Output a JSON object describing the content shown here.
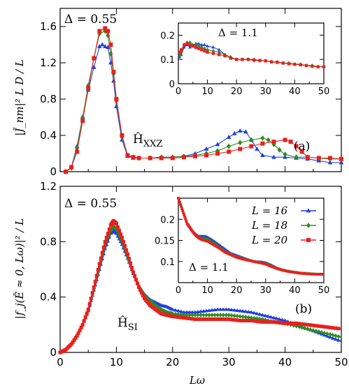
{
  "chart_data": [
    {
      "type": "line",
      "panel_tag": "(a)",
      "delta_label": "Δ = 0.55",
      "model_label_main": "Ĥ",
      "model_label_sub": "XXZ",
      "ylabel": "|J̄_nm|² L D / L",
      "xlim": [
        0,
        50
      ],
      "ylim": [
        0,
        1.8
      ],
      "xticks": [
        0,
        10,
        20,
        30,
        40,
        50
      ],
      "yticks": [
        0,
        0.4,
        0.8,
        1.2,
        1.6
      ],
      "ytick_labels": [
        "0",
        "0.4",
        "0.8",
        "1.2",
        "1.6"
      ],
      "series": [
        {
          "name": "L = 16",
          "color": "#1f3fe0",
          "marker": "triangle",
          "x": [
            1,
            2,
            3,
            4,
            5,
            6,
            7,
            7.5,
            8,
            8.5,
            9,
            9.5,
            10,
            11,
            12,
            13,
            14,
            16,
            18,
            20,
            22,
            24,
            26,
            28,
            30,
            31,
            32,
            33,
            34,
            35,
            36,
            38,
            40,
            42,
            44,
            46,
            48,
            50
          ],
          "y": [
            0,
            0.05,
            0.28,
            0.6,
            0.9,
            1.15,
            1.38,
            1.4,
            1.38,
            1.37,
            1.2,
            1.0,
            0.72,
            0.35,
            0.17,
            0.15,
            0.15,
            0.15,
            0.16,
            0.16,
            0.17,
            0.2,
            0.25,
            0.3,
            0.38,
            0.42,
            0.45,
            0.44,
            0.35,
            0.25,
            0.18,
            0.16,
            0.16,
            0.15,
            0.14,
            0.12,
            0.1,
            0.1
          ]
        },
        {
          "name": "L = 18",
          "color": "#2e8b22",
          "marker": "diamond",
          "x": [
            1,
            2,
            3,
            4,
            5,
            6,
            7,
            8,
            8.5,
            9,
            9.5,
            10,
            11,
            12,
            13,
            14,
            16,
            18,
            20,
            22,
            24,
            26,
            28,
            30,
            32,
            34,
            36,
            37,
            38,
            39,
            40,
            42,
            44,
            46,
            48,
            50
          ],
          "y": [
            0,
            0.04,
            0.26,
            0.6,
            0.95,
            1.25,
            1.52,
            1.55,
            1.5,
            1.3,
            1.08,
            0.78,
            0.38,
            0.18,
            0.16,
            0.15,
            0.15,
            0.16,
            0.16,
            0.17,
            0.18,
            0.2,
            0.23,
            0.28,
            0.32,
            0.35,
            0.37,
            0.35,
            0.3,
            0.24,
            0.19,
            0.16,
            0.16,
            0.15,
            0.14,
            0.14
          ]
        },
        {
          "name": "L = 20",
          "color": "#e8201c",
          "marker": "square",
          "x": [
            1,
            2,
            3,
            4,
            5,
            6,
            7,
            8,
            8.5,
            9,
            9.5,
            10,
            11,
            12,
            13,
            14,
            16,
            18,
            20,
            22,
            24,
            26,
            28,
            30,
            32,
            34,
            36,
            38,
            40,
            41,
            42,
            43,
            44,
            46,
            48,
            50
          ],
          "y": [
            0,
            0.05,
            0.22,
            0.56,
            0.92,
            1.25,
            1.55,
            1.58,
            1.55,
            1.4,
            1.1,
            0.8,
            0.4,
            0.18,
            0.16,
            0.15,
            0.15,
            0.15,
            0.15,
            0.16,
            0.17,
            0.18,
            0.2,
            0.22,
            0.25,
            0.28,
            0.31,
            0.33,
            0.35,
            0.33,
            0.28,
            0.22,
            0.16,
            0.15,
            0.15,
            0.14
          ]
        }
      ],
      "inset": {
        "delta_label": "Δ = 1.1",
        "xlim": [
          0,
          50
        ],
        "ylim": [
          0,
          0.25
        ],
        "xticks": [
          0,
          10,
          20,
          30,
          40,
          50
        ],
        "yticks": [
          0,
          0.1,
          0.2
        ],
        "ytick_labels": [
          "0",
          "0.1",
          "0.2"
        ],
        "series": [
          {
            "name": "L = 16",
            "color": "#1f3fe0",
            "marker": "triangle",
            "x": [
              0.5,
              1,
              2,
              3,
              4,
              5,
              6,
              7,
              8,
              9,
              10,
              12,
              14,
              16,
              18,
              20,
              22,
              24,
              26,
              28,
              30,
              32,
              34,
              36,
              38,
              40,
              42,
              44,
              46,
              48,
              50
            ],
            "y": [
              0.11,
              0.12,
              0.15,
              0.16,
              0.15,
              0.16,
              0.165,
              0.165,
              0.16,
              0.16,
              0.155,
              0.15,
              0.14,
              0.12,
              0.11,
              0.1,
              0.1,
              0.1,
              0.1,
              0.095,
              0.095,
              0.09,
              0.09,
              0.085,
              0.085,
              0.08,
              0.08,
              0.075,
              0.075,
              0.07,
              0.07
            ]
          },
          {
            "name": "L = 18",
            "color": "#2e8b22",
            "marker": "diamond",
            "x": [
              0.5,
              1,
              2,
              3,
              4,
              5,
              6,
              7,
              8,
              9,
              10,
              12,
              14,
              16,
              18,
              20,
              22,
              24,
              26,
              28,
              30,
              32,
              34,
              36,
              38,
              40,
              42,
              44,
              46,
              48,
              50
            ],
            "y": [
              0.12,
              0.13,
              0.16,
              0.17,
              0.17,
              0.16,
              0.16,
              0.155,
              0.15,
              0.145,
              0.14,
              0.135,
              0.13,
              0.12,
              0.11,
              0.1,
              0.1,
              0.1,
              0.095,
              0.095,
              0.095,
              0.09,
              0.09,
              0.085,
              0.085,
              0.08,
              0.08,
              0.075,
              0.075,
              0.07,
              0.07
            ]
          },
          {
            "name": "L = 20",
            "color": "#e8201c",
            "marker": "square",
            "x": [
              0.5,
              1,
              2,
              3,
              4,
              5,
              6,
              7,
              8,
              9,
              10,
              12,
              14,
              16,
              18,
              20,
              22,
              24,
              26,
              28,
              30,
              32,
              34,
              36,
              38,
              40,
              42,
              44,
              46,
              48,
              50
            ],
            "y": [
              0.13,
              0.14,
              0.16,
              0.165,
              0.16,
              0.155,
              0.15,
              0.145,
              0.14,
              0.135,
              0.13,
              0.125,
              0.12,
              0.115,
              0.105,
              0.1,
              0.1,
              0.1,
              0.098,
              0.096,
              0.094,
              0.09,
              0.088,
              0.085,
              0.082,
              0.08,
              0.078,
              0.075,
              0.072,
              0.07,
              0.07
            ]
          }
        ]
      }
    },
    {
      "type": "line",
      "panel_tag": "(b)",
      "delta_label": "Δ = 0.55",
      "model_label_main": "Ĥ",
      "model_label_sub": "SI",
      "xlabel": "Lω",
      "ylabel": "|f_j(Ē ≈ 0, Lω)|² / L",
      "xlim": [
        0,
        50
      ],
      "ylim": [
        0,
        1.2
      ],
      "xticks": [
        0,
        10,
        20,
        30,
        40,
        50
      ],
      "yticks": [
        0,
        0.4,
        0.8,
        1.2
      ],
      "ytick_labels": [
        "0",
        "0.4",
        "0.8",
        "1.2"
      ],
      "series": [
        {
          "name": "L = 16",
          "color": "#1f3fe0",
          "marker": "triangle",
          "x": [
            0,
            1,
            2,
            3,
            4,
            5,
            6,
            7,
            8,
            9,
            9.5,
            10,
            11,
            12,
            13,
            14,
            15,
            16,
            17,
            18,
            19,
            20,
            22,
            24,
            26,
            28,
            30,
            32,
            34,
            36,
            38,
            40,
            42,
            44,
            46,
            48,
            50
          ],
          "y": [
            0,
            0.02,
            0.06,
            0.12,
            0.2,
            0.3,
            0.45,
            0.6,
            0.75,
            0.86,
            0.88,
            0.86,
            0.78,
            0.68,
            0.57,
            0.48,
            0.42,
            0.38,
            0.36,
            0.34,
            0.33,
            0.31,
            0.29,
            0.29,
            0.3,
            0.31,
            0.31,
            0.3,
            0.29,
            0.27,
            0.25,
            0.23,
            0.2,
            0.17,
            0.14,
            0.11,
            0.08
          ]
        },
        {
          "name": "L = 18",
          "color": "#2e8b22",
          "marker": "diamond",
          "x": [
            0,
            1,
            2,
            3,
            4,
            5,
            6,
            7,
            8,
            9,
            9.5,
            10,
            11,
            12,
            13,
            14,
            15,
            16,
            17,
            18,
            19,
            20,
            22,
            24,
            26,
            28,
            30,
            32,
            34,
            36,
            38,
            40,
            42,
            44,
            46,
            48,
            50
          ],
          "y": [
            0,
            0.02,
            0.06,
            0.12,
            0.2,
            0.31,
            0.46,
            0.62,
            0.78,
            0.88,
            0.91,
            0.89,
            0.8,
            0.69,
            0.58,
            0.48,
            0.41,
            0.37,
            0.34,
            0.31,
            0.29,
            0.28,
            0.27,
            0.27,
            0.27,
            0.27,
            0.27,
            0.26,
            0.25,
            0.24,
            0.22,
            0.21,
            0.19,
            0.17,
            0.15,
            0.13,
            0.11
          ]
        },
        {
          "name": "L = 20",
          "color": "#e8201c",
          "marker": "square",
          "x": [
            0,
            1,
            2,
            3,
            4,
            5,
            6,
            7,
            8,
            9,
            9.5,
            10,
            11,
            12,
            13,
            14,
            15,
            16,
            17,
            18,
            19,
            20,
            22,
            24,
            26,
            28,
            30,
            32,
            34,
            36,
            38,
            40,
            42,
            44,
            46,
            48,
            50
          ],
          "y": [
            0,
            0.02,
            0.06,
            0.12,
            0.2,
            0.31,
            0.47,
            0.64,
            0.8,
            0.92,
            0.95,
            0.93,
            0.83,
            0.71,
            0.58,
            0.47,
            0.39,
            0.34,
            0.31,
            0.28,
            0.27,
            0.26,
            0.25,
            0.24,
            0.24,
            0.24,
            0.24,
            0.23,
            0.23,
            0.22,
            0.22,
            0.21,
            0.21,
            0.2,
            0.19,
            0.18,
            0.17
          ]
        }
      ],
      "inset": {
        "delta_label": "Δ = 1.1",
        "legend": [
          "L = 16",
          "L = 18",
          "L = 20"
        ],
        "xlim": [
          0,
          50
        ],
        "ylim": [
          0.05,
          0.25
        ],
        "xticks": [
          0,
          10,
          20,
          30,
          40,
          50
        ],
        "yticks": [
          0.1,
          0.15,
          0.2
        ],
        "ytick_labels": [
          "0.1",
          "0.15",
          "0.2"
        ],
        "series": [
          {
            "name": "L = 16",
            "color": "#1f3fe0",
            "marker": "triangle",
            "x": [
              0,
              1,
              2,
              3,
              4,
              5,
              6,
              7,
              8,
              9,
              10,
              12,
              14,
              16,
              18,
              20,
              22,
              24,
              26,
              28,
              30,
              32,
              34,
              36,
              38,
              40,
              42,
              44,
              46,
              48,
              50
            ],
            "y": [
              0.25,
              0.23,
              0.21,
              0.19,
              0.18,
              0.17,
              0.165,
              0.16,
              0.16,
              0.16,
              0.158,
              0.15,
              0.14,
              0.13,
              0.12,
              0.115,
              0.11,
              0.105,
              0.1,
              0.1,
              0.098,
              0.092,
              0.085,
              0.08,
              0.077,
              0.075,
              0.073,
              0.072,
              0.071,
              0.07,
              0.07
            ]
          },
          {
            "name": "L = 18",
            "color": "#2e8b22",
            "marker": "diamond",
            "x": [
              0,
              1,
              2,
              3,
              4,
              5,
              6,
              7,
              8,
              9,
              10,
              12,
              14,
              16,
              18,
              20,
              22,
              24,
              26,
              28,
              30,
              32,
              34,
              36,
              38,
              40,
              42,
              44,
              46,
              48,
              50
            ],
            "y": [
              0.25,
              0.23,
              0.21,
              0.19,
              0.18,
              0.17,
              0.163,
              0.158,
              0.155,
              0.155,
              0.153,
              0.145,
              0.135,
              0.125,
              0.118,
              0.112,
              0.108,
              0.104,
              0.1,
              0.098,
              0.096,
              0.09,
              0.084,
              0.08,
              0.077,
              0.075,
              0.073,
              0.072,
              0.071,
              0.07,
              0.07
            ]
          },
          {
            "name": "L = 20",
            "color": "#e8201c",
            "marker": "square",
            "x": [
              0,
              1,
              2,
              3,
              4,
              5,
              6,
              7,
              8,
              9,
              10,
              12,
              14,
              16,
              18,
              20,
              22,
              24,
              26,
              28,
              30,
              32,
              34,
              36,
              38,
              40,
              42,
              44,
              46,
              48,
              50
            ],
            "y": [
              0.25,
              0.23,
              0.21,
              0.19,
              0.18,
              0.17,
              0.162,
              0.156,
              0.152,
              0.15,
              0.148,
              0.14,
              0.132,
              0.122,
              0.116,
              0.11,
              0.106,
              0.103,
              0.1,
              0.097,
              0.094,
              0.088,
              0.083,
              0.079,
              0.076,
              0.074,
              0.072,
              0.071,
              0.07,
              0.07,
              0.07
            ]
          }
        ]
      }
    }
  ]
}
